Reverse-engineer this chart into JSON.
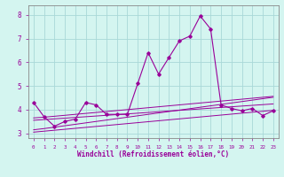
{
  "xlabel": "Windchill (Refroidissement éolien,°C)",
  "ylabel": "",
  "background_color": "#d4f5f0",
  "grid_color": "#a8d8d8",
  "line_color": "#990099",
  "xlim": [
    -0.5,
    23.5
  ],
  "ylim": [
    2.8,
    8.4
  ],
  "yticks": [
    3,
    4,
    5,
    6,
    7,
    8
  ],
  "xticks": [
    0,
    1,
    2,
    3,
    4,
    5,
    6,
    7,
    8,
    9,
    10,
    11,
    12,
    13,
    14,
    15,
    16,
    17,
    18,
    19,
    20,
    21,
    22,
    23
  ],
  "main_series": [
    4.3,
    3.7,
    3.3,
    3.5,
    3.6,
    4.3,
    4.2,
    3.8,
    3.8,
    3.8,
    5.1,
    6.4,
    5.5,
    6.2,
    6.9,
    7.1,
    7.95,
    7.4,
    4.2,
    4.05,
    3.95,
    4.05,
    3.75,
    3.95
  ],
  "trend1": [
    3.05,
    3.09,
    3.13,
    3.17,
    3.21,
    3.25,
    3.29,
    3.33,
    3.37,
    3.41,
    3.45,
    3.49,
    3.53,
    3.57,
    3.61,
    3.65,
    3.69,
    3.73,
    3.77,
    3.81,
    3.85,
    3.89,
    3.93,
    3.97
  ],
  "trend2": [
    3.15,
    3.2,
    3.26,
    3.32,
    3.38,
    3.44,
    3.5,
    3.56,
    3.62,
    3.68,
    3.74,
    3.8,
    3.86,
    3.92,
    3.98,
    4.04,
    4.1,
    4.16,
    4.22,
    4.28,
    4.34,
    4.4,
    4.46,
    4.52
  ],
  "trend3": [
    3.55,
    3.58,
    3.61,
    3.64,
    3.67,
    3.7,
    3.73,
    3.76,
    3.79,
    3.82,
    3.85,
    3.88,
    3.91,
    3.94,
    3.97,
    4.0,
    4.03,
    4.06,
    4.09,
    4.12,
    4.15,
    4.18,
    4.21,
    4.24
  ],
  "trend4": [
    3.65,
    3.68,
    3.72,
    3.76,
    3.8,
    3.84,
    3.88,
    3.92,
    3.96,
    4.0,
    4.04,
    4.08,
    4.12,
    4.16,
    4.2,
    4.24,
    4.28,
    4.32,
    4.36,
    4.4,
    4.44,
    4.48,
    4.52,
    4.56
  ]
}
